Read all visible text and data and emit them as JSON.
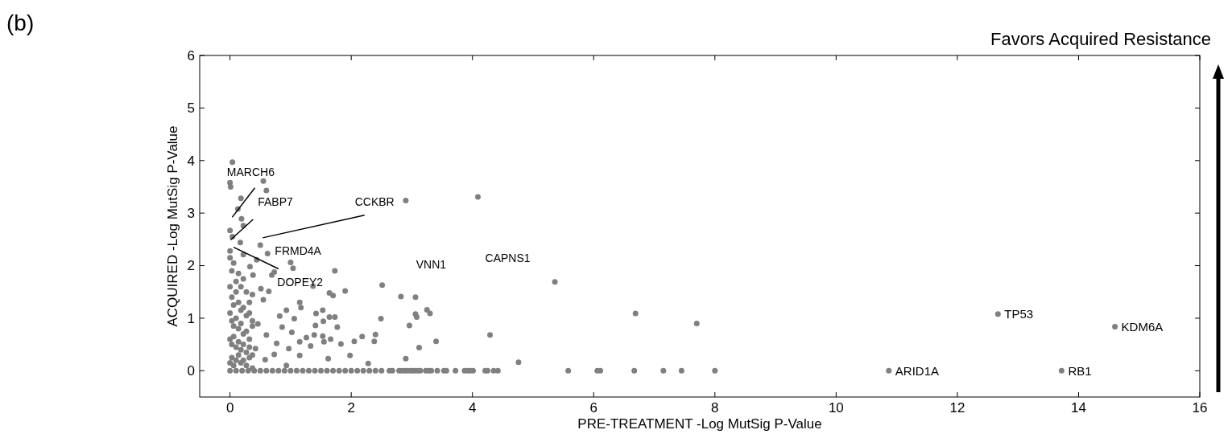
{
  "chart_data": {
    "type": "scatter",
    "xlabel": "PRE-TREATMENT -Log MutSig P-Value",
    "ylabel": "ACQUIRED -Log MutSig P-Value",
    "xlim": [
      -0.5,
      16
    ],
    "ylim": [
      -0.5,
      6
    ],
    "xticks": [
      0,
      2,
      4,
      6,
      8,
      10,
      12,
      14,
      16
    ],
    "yticks": [
      0,
      1,
      2,
      3,
      4,
      5,
      6
    ],
    "grid": false,
    "marker": "circle",
    "series": [
      {
        "color": "#808080",
        "x": [
          0.04,
          0.0,
          0.01,
          0.55,
          0.6,
          0.18,
          0.13,
          0.19,
          0.22,
          0.0,
          0.04,
          0.17,
          0.5,
          0.62,
          0.0,
          0.22,
          0.44,
          1.0,
          1.04,
          0.73,
          1.73,
          1.37,
          1.9,
          2.51,
          1.64,
          1.7,
          2.9,
          4.09,
          5.36,
          6.69,
          7.7,
          2.82,
          3.06,
          3.25,
          3.3,
          3.06,
          3.08,
          2.96,
          3.4,
          3.12,
          2.9,
          4.29,
          4.76,
          2.49,
          2.4,
          2.38,
          2.18,
          2.05,
          1.98,
          2.28,
          1.62,
          1.83,
          1.77,
          1.73,
          1.64,
          1.53,
          1.54,
          1.42,
          1.41,
          1.53,
          1.55,
          1.66,
          1.39,
          1.26,
          1.33,
          1.15,
          1.15,
          1.15,
          1.17,
          1.06,
          0.93,
          0.82,
          0.86,
          1.02,
          0.97,
          0.93,
          0.77,
          0.73,
          0.64,
          0.51,
          0.69,
          0.38,
          0.33,
          0.55,
          0.46,
          0.6,
          0.42,
          0.58
        ],
        "values": [
          3.97,
          3.58,
          3.5,
          3.61,
          3.43,
          3.28,
          3.08,
          2.89,
          2.76,
          2.67,
          2.55,
          2.44,
          2.39,
          2.23,
          2.28,
          2.21,
          2.11,
          2.06,
          1.95,
          1.88,
          1.9,
          1.61,
          1.52,
          1.63,
          1.48,
          1.43,
          3.24,
          3.31,
          1.69,
          1.09,
          0.9,
          1.41,
          1.4,
          1.16,
          1.09,
          1.08,
          1.02,
          0.86,
          0.56,
          0.44,
          0.23,
          0.68,
          0.16,
          0.99,
          0.69,
          0.56,
          0.65,
          0.56,
          0.29,
          0.14,
          0.23,
          0.51,
          0.83,
          1.02,
          1.02,
          1.15,
          0.94,
          1.09,
          0.86,
          0.66,
          0.55,
          0.6,
          0.68,
          0.63,
          0.47,
          0.55,
          0.29,
          1.3,
          1.2,
          0.99,
          1.15,
          1.04,
          0.83,
          0.73,
          0.42,
          0.1,
          0.52,
          0.31,
          1.51,
          1.56,
          1.82,
          1.82,
          1.98,
          1.35,
          0.89,
          0.68,
          0.42,
          0.21
        ]
      },
      {
        "color": "#808080",
        "x": [
          0.0,
          0.03,
          0.06,
          0.1,
          0.14,
          0.18,
          0.22,
          0.27,
          0.32,
          0.37,
          0.0,
          0.03,
          0.06,
          0.1,
          0.14,
          0.18,
          0.22,
          0.27,
          0.32,
          0.37,
          0.0,
          0.03,
          0.06,
          0.1,
          0.14,
          0.18,
          0.22,
          0.27,
          0.32,
          0.37,
          0.0,
          0.03,
          0.06,
          0.1,
          0.14,
          0.18,
          0.22,
          0.27,
          0.32,
          0.37,
          0.0,
          0.03,
          0.06,
          0.1,
          0.14,
          0.18,
          0.22,
          0.27,
          0.32,
          0.37
        ],
        "values": [
          2.15,
          1.9,
          2.05,
          1.7,
          1.85,
          1.6,
          1.75,
          1.5,
          1.3,
          1.45,
          1.6,
          1.4,
          1.25,
          1.5,
          1.3,
          1.15,
          1.2,
          1.05,
          1.1,
          0.95,
          1.1,
          0.95,
          0.85,
          1.0,
          0.8,
          0.9,
          0.7,
          0.75,
          0.6,
          0.85,
          0.6,
          0.5,
          0.65,
          0.45,
          0.55,
          0.4,
          0.5,
          0.35,
          0.45,
          0.3,
          0.15,
          0.25,
          0.1,
          0.2,
          0.3,
          0.15,
          0.2,
          0.1,
          0.25,
          0.05
        ]
      },
      {
        "color": "#808080",
        "x": [
          0.0,
          0.1,
          0.2,
          0.3,
          0.4,
          0.5,
          0.6,
          0.7,
          0.8,
          0.9,
          1.0,
          1.1,
          1.2,
          1.3,
          1.4,
          1.5,
          1.6,
          1.7,
          1.8,
          1.9,
          2.0,
          2.1,
          2.2,
          2.3,
          2.4,
          2.5,
          2.63,
          2.68,
          2.79,
          2.83,
          2.88,
          2.92,
          2.97,
          3.01,
          3.05,
          3.1,
          3.14,
          3.23,
          3.28,
          3.32,
          3.42,
          3.53,
          3.57,
          3.72,
          3.87,
          3.92,
          3.96,
          4.01,
          4.21,
          4.25,
          4.35,
          4.42,
          5.58,
          6.06,
          6.11,
          6.67,
          7.15,
          7.45,
          8.0
        ],
        "values": [
          0,
          0,
          0,
          0,
          0,
          0,
          0,
          0,
          0,
          0,
          0,
          0,
          0,
          0,
          0,
          0,
          0,
          0,
          0,
          0,
          0,
          0,
          0,
          0,
          0,
          0,
          0,
          0,
          0,
          0,
          0,
          0,
          0,
          0,
          0,
          0,
          0,
          0,
          0,
          0,
          0,
          0,
          0,
          0,
          0,
          0,
          0,
          0,
          0,
          0,
          0,
          0,
          0,
          0,
          0,
          0,
          0,
          0,
          0
        ]
      },
      {
        "color": "#808080",
        "x": [
          10.87,
          12.67,
          13.72,
          14.6
        ],
        "values": [
          0,
          1.08,
          0,
          0.84
        ]
      },
      {
        "type": "line",
        "marker": "none",
        "color": "#000000",
        "x": [
          0.41,
          0.035
        ],
        "values": [
          3.48,
          2.92
        ]
      },
      {
        "type": "line",
        "marker": "none",
        "color": "#000000",
        "x": [
          0.38,
          0.01
        ],
        "values": [
          2.88,
          2.49
        ]
      },
      {
        "type": "line",
        "marker": "none",
        "color": "#000000",
        "x": [
          2.22,
          0.54
        ],
        "values": [
          2.96,
          2.53
        ]
      },
      {
        "type": "line",
        "marker": "none",
        "color": "#000000",
        "x": [
          0.06,
          0.8
        ],
        "values": [
          2.35,
          1.94
        ]
      }
    ],
    "annotations": [
      "(b)",
      "Favors Acquired Resistance",
      "MARCH6",
      "FABP7",
      "CCKBR",
      "FRMD4A",
      "DOPEY2",
      "VNN1",
      "CAPNS1",
      {
        "text": "TP53",
        "x": 12.67,
        "y": 1.08
      },
      {
        "text": "KDM6A",
        "x": 14.6,
        "y": 0.84
      },
      {
        "text": "ARID1A",
        "x": 10.87,
        "y": 0
      },
      {
        "text": "RB1",
        "x": 13.72,
        "y": 0
      }
    ]
  }
}
